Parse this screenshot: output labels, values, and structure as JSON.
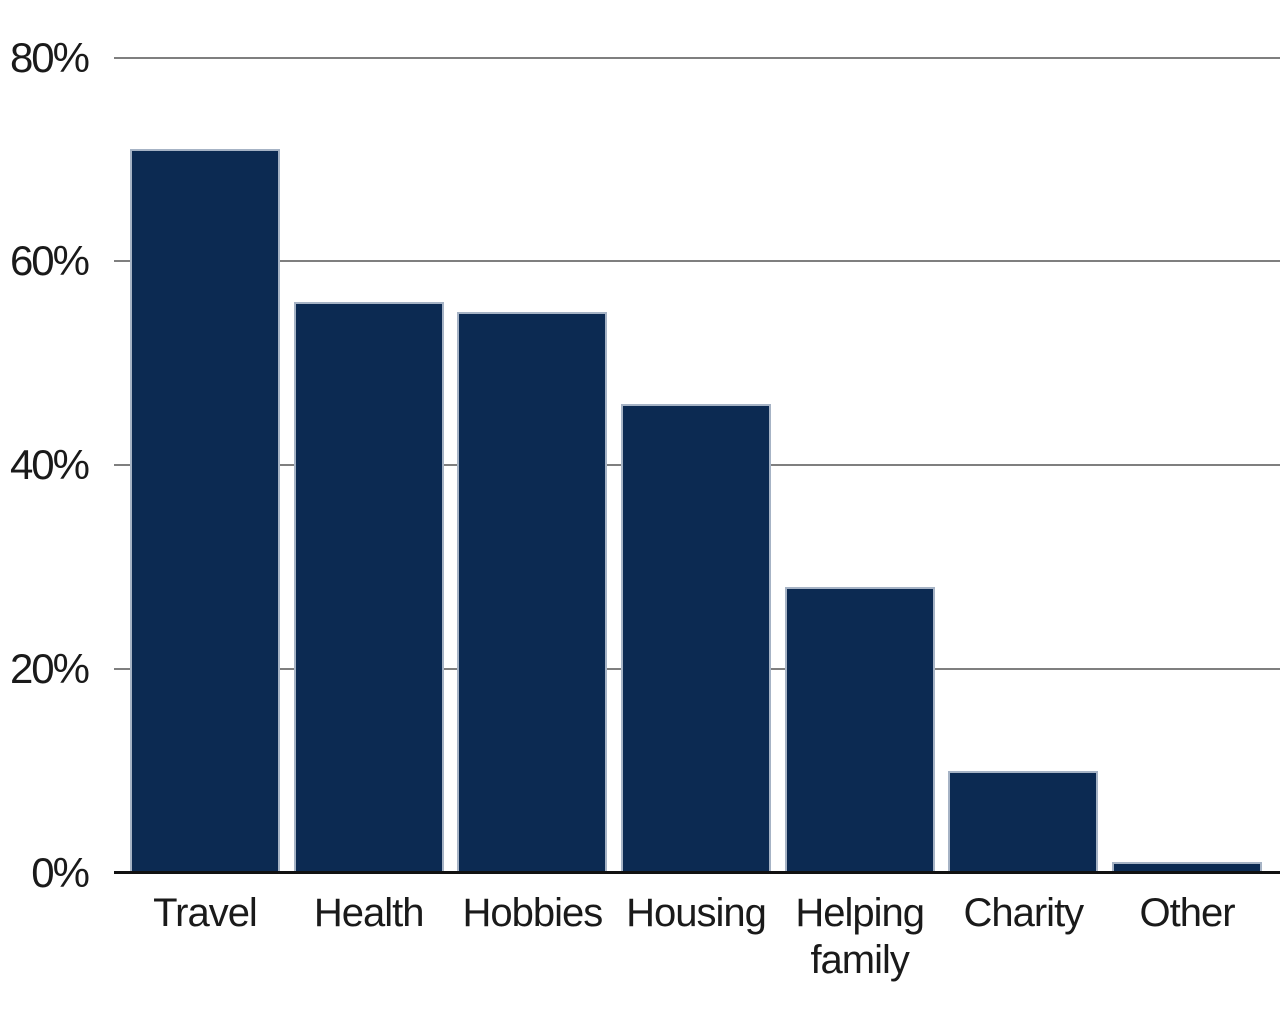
{
  "chart_data": {
    "type": "bar",
    "categories": [
      "Travel",
      "Health",
      "Hobbies",
      "Housing",
      "Helping family",
      "Charity",
      "Other"
    ],
    "values": [
      71,
      56,
      55,
      46,
      28,
      10,
      1
    ],
    "xlabel": "",
    "ylabel": "",
    "ylim": [
      0,
      80
    ],
    "yticks": [
      0,
      20,
      40,
      60,
      80
    ],
    "ytick_labels": [
      "0%",
      "20%",
      "40%",
      "60%",
      "80%"
    ],
    "grid": true,
    "legend": false,
    "colors": {
      "bar_fill": "#0c2a52",
      "bar_edge": "#a6b3c5",
      "gridline": "#7f7f7f",
      "axis_line": "#111111",
      "text": "#1a1a1a",
      "background": "#ffffff"
    }
  }
}
